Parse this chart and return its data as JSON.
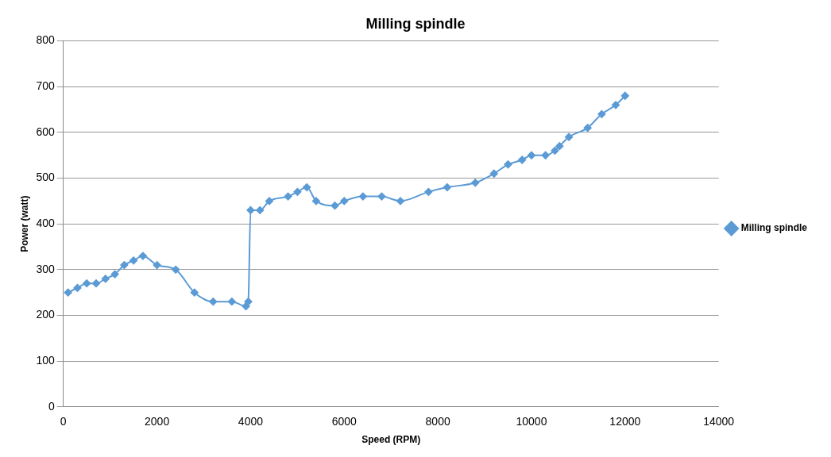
{
  "chart_data": {
    "type": "line",
    "title": "Milling spindle",
    "xlabel": "Speed (RPM)",
    "ylabel": "Power (watt)",
    "x": [
      100,
      300,
      500,
      700,
      900,
      1100,
      1300,
      1500,
      1700,
      2000,
      2400,
      2800,
      3200,
      3600,
      3900,
      3950,
      4000,
      4200,
      4400,
      4800,
      5000,
      5200,
      5400,
      5800,
      6000,
      6400,
      6800,
      7200,
      7800,
      8200,
      8800,
      9200,
      9500,
      9800,
      10000,
      10300,
      10500,
      10600,
      10800,
      11200,
      11500,
      11800,
      12000
    ],
    "series": [
      {
        "name": "Milling spindle",
        "color": "#5b9bd5",
        "values": [
          250,
          260,
          270,
          270,
          280,
          290,
          310,
          320,
          330,
          310,
          300,
          250,
          230,
          230,
          220,
          230,
          430,
          430,
          450,
          460,
          470,
          480,
          450,
          440,
          450,
          460,
          460,
          450,
          470,
          480,
          490,
          510,
          530,
          540,
          550,
          550,
          560,
          570,
          590,
          610,
          640,
          660,
          680
        ]
      }
    ],
    "xlim": [
      0,
      14000
    ],
    "xticks": [
      0,
      2000,
      4000,
      6000,
      8000,
      10000,
      12000,
      14000
    ],
    "ylim": [
      0,
      800
    ],
    "yticks": [
      0,
      100,
      200,
      300,
      400,
      500,
      600,
      700,
      800
    ],
    "grid": "y",
    "legend": "right",
    "marker": "diamond",
    "line_style": "solid"
  }
}
